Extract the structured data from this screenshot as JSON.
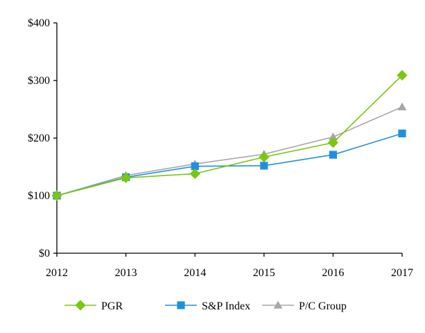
{
  "chart_data": {
    "type": "line",
    "title": "",
    "xlabel": "",
    "ylabel": "",
    "categories": [
      "2012",
      "2013",
      "2014",
      "2015",
      "2016",
      "2017"
    ],
    "ylim": [
      0,
      400
    ],
    "yticks": [
      0,
      100,
      200,
      300,
      400
    ],
    "ytick_labels": [
      "$0",
      "$100",
      "$200",
      "$300",
      "$400"
    ],
    "grid": false,
    "legend_position": "bottom",
    "series": [
      {
        "name": "PGR",
        "color": "#7ac70c",
        "marker": "diamond",
        "values": [
          100,
          131,
          138,
          167,
          192,
          309
        ]
      },
      {
        "name": "S&P Index",
        "color": "#1f90e0",
        "marker": "square",
        "values": [
          100,
          132,
          151,
          152,
          171,
          208
        ]
      },
      {
        "name": "P/C Group",
        "color": "#a6a6a6",
        "marker": "triangle",
        "values": [
          100,
          135,
          155,
          172,
          202,
          254
        ]
      }
    ]
  }
}
